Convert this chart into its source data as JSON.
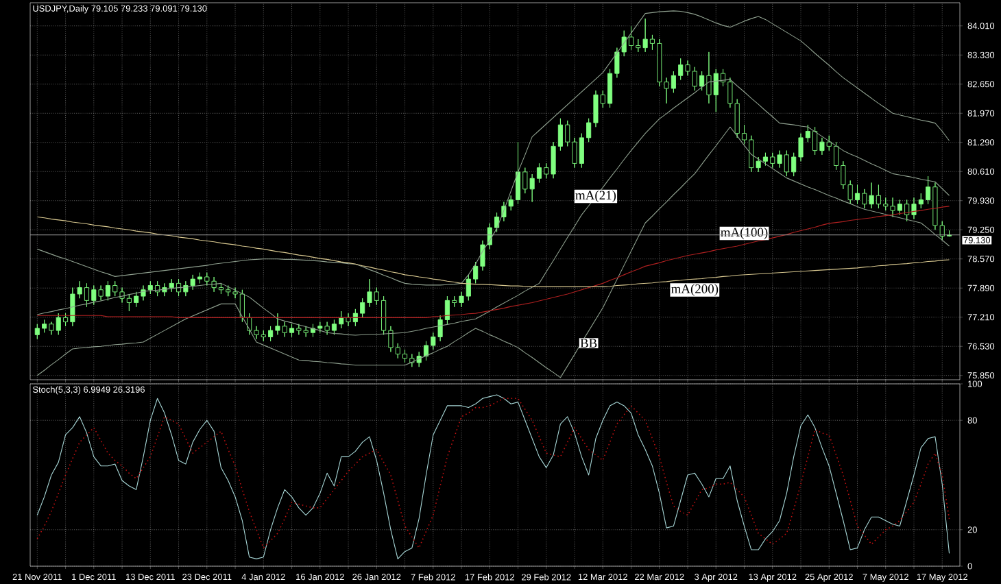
{
  "chart_data": [
    {
      "type": "candlestick",
      "title": "USDJPY,Daily 79.105 79.233 79.091 79.130",
      "color": "#80ff80",
      "categories": [
        null,
        null,
        null,
        null,
        null,
        null,
        null,
        null,
        null,
        null,
        null,
        null,
        null,
        null,
        null,
        null,
        null,
        null,
        null,
        null,
        null,
        null,
        null,
        null,
        null,
        null,
        null,
        null,
        null,
        null,
        null,
        null,
        null,
        null,
        null,
        null,
        null,
        null,
        null,
        null,
        null,
        null,
        null,
        null,
        null,
        null,
        null,
        null,
        null,
        null,
        null,
        null,
        null,
        null,
        null,
        null,
        null,
        null,
        null,
        null,
        null,
        null,
        null,
        null,
        null,
        null,
        null,
        null,
        null,
        null,
        null,
        null,
        null,
        null,
        null,
        null,
        null,
        null,
        null,
        null,
        null,
        null,
        null,
        null,
        null,
        null,
        null,
        null,
        null,
        null,
        null,
        null,
        null,
        null,
        null,
        null,
        null,
        null,
        null,
        null,
        null,
        null,
        null,
        null,
        null,
        null,
        null,
        null,
        null,
        null,
        null,
        null,
        null,
        null,
        null,
        null,
        null,
        null,
        null,
        null,
        null,
        null,
        null,
        null,
        null,
        null,
        null,
        null,
        null,
        null
      ],
      "ohlc": [
        [
          76.8,
          77.05,
          76.7,
          76.95
        ],
        [
          76.95,
          77.15,
          76.85,
          77.05
        ],
        [
          77.05,
          77.1,
          76.8,
          76.9
        ],
        [
          76.9,
          77.3,
          76.8,
          77.2
        ],
        [
          77.2,
          77.3,
          77.0,
          77.1
        ],
        [
          77.1,
          77.9,
          77.0,
          77.75
        ],
        [
          77.75,
          78.05,
          77.65,
          77.9
        ],
        [
          77.9,
          78.0,
          77.45,
          77.6
        ],
        [
          77.6,
          77.95,
          77.5,
          77.85
        ],
        [
          77.85,
          77.95,
          77.6,
          77.7
        ],
        [
          77.7,
          78.05,
          77.6,
          77.95
        ],
        [
          77.95,
          78.05,
          77.7,
          77.8
        ],
        [
          77.8,
          77.9,
          77.55,
          77.65
        ],
        [
          77.65,
          77.75,
          77.35,
          77.55
        ],
        [
          77.55,
          77.8,
          77.45,
          77.7
        ],
        [
          77.7,
          77.95,
          77.6,
          77.85
        ],
        [
          77.85,
          78.05,
          77.75,
          77.95
        ],
        [
          77.95,
          78.05,
          77.7,
          77.8
        ],
        [
          77.8,
          78.0,
          77.7,
          77.9
        ],
        [
          77.9,
          78.1,
          77.8,
          78.0
        ],
        [
          78.0,
          78.1,
          77.7,
          77.8
        ],
        [
          77.8,
          78.05,
          77.7,
          77.95
        ],
        [
          77.95,
          78.2,
          77.85,
          78.1
        ],
        [
          78.1,
          78.25,
          78.0,
          78.15
        ],
        [
          78.15,
          78.25,
          77.95,
          78.05
        ],
        [
          78.05,
          78.15,
          77.8,
          77.9
        ],
        [
          77.9,
          78.0,
          77.75,
          77.85
        ],
        [
          77.85,
          77.95,
          77.7,
          77.8
        ],
        [
          77.8,
          77.9,
          77.65,
          77.75
        ],
        [
          77.75,
          77.85,
          77.1,
          77.2
        ],
        [
          77.2,
          77.3,
          76.8,
          76.9
        ],
        [
          76.9,
          77.0,
          76.7,
          76.8
        ],
        [
          76.8,
          76.9,
          76.65,
          76.75
        ],
        [
          76.75,
          77.0,
          76.65,
          76.9
        ],
        [
          76.9,
          77.3,
          76.8,
          77.0
        ],
        [
          77.0,
          77.1,
          76.75,
          76.85
        ],
        [
          76.85,
          77.05,
          76.75,
          76.95
        ],
        [
          76.95,
          77.05,
          76.8,
          76.9
        ],
        [
          76.9,
          77.0,
          76.75,
          76.85
        ],
        [
          76.85,
          77.05,
          76.75,
          76.95
        ],
        [
          76.95,
          77.1,
          76.85,
          77.0
        ],
        [
          77.0,
          77.1,
          76.8,
          76.9
        ],
        [
          76.9,
          77.15,
          76.8,
          77.05
        ],
        [
          77.05,
          77.35,
          76.95,
          77.2
        ],
        [
          77.2,
          77.3,
          77.0,
          77.1
        ],
        [
          77.1,
          77.4,
          77.0,
          77.3
        ],
        [
          77.3,
          77.65,
          77.2,
          77.55
        ],
        [
          77.55,
          78.1,
          77.45,
          77.8
        ],
        [
          77.8,
          77.9,
          77.5,
          77.6
        ],
        [
          77.6,
          77.7,
          76.8,
          76.9
        ],
        [
          76.9,
          77.0,
          76.4,
          76.5
        ],
        [
          76.5,
          76.6,
          76.25,
          76.35
        ],
        [
          76.35,
          76.45,
          76.15,
          76.25
        ],
        [
          76.25,
          76.35,
          76.05,
          76.15
        ],
        [
          76.15,
          76.4,
          76.05,
          76.3
        ],
        [
          76.3,
          76.65,
          76.2,
          76.55
        ],
        [
          76.55,
          76.85,
          76.45,
          76.75
        ],
        [
          76.75,
          77.25,
          76.65,
          77.15
        ],
        [
          77.15,
          77.7,
          77.05,
          77.6
        ],
        [
          77.6,
          77.7,
          77.45,
          77.55
        ],
        [
          77.55,
          77.8,
          77.45,
          77.7
        ],
        [
          77.7,
          78.2,
          77.6,
          78.1
        ],
        [
          78.1,
          78.5,
          78.0,
          78.4
        ],
        [
          78.4,
          79.0,
          78.3,
          78.9
        ],
        [
          78.9,
          79.4,
          78.8,
          79.3
        ],
        [
          79.3,
          79.65,
          79.2,
          79.55
        ],
        [
          79.55,
          79.9,
          79.45,
          79.8
        ],
        [
          79.8,
          80.05,
          79.7,
          79.95
        ],
        [
          79.95,
          81.3,
          79.85,
          80.6
        ],
        [
          80.6,
          80.7,
          80.1,
          80.2
        ],
        [
          80.2,
          80.55,
          79.9,
          80.45
        ],
        [
          80.45,
          80.8,
          80.35,
          80.7
        ],
        [
          80.7,
          80.8,
          80.45,
          80.55
        ],
        [
          80.55,
          81.3,
          80.45,
          81.2
        ],
        [
          81.2,
          81.85,
          81.1,
          81.7
        ],
        [
          81.7,
          81.8,
          81.2,
          81.3
        ],
        [
          81.3,
          81.4,
          80.7,
          80.8
        ],
        [
          80.8,
          81.5,
          80.7,
          81.4
        ],
        [
          81.4,
          81.85,
          81.3,
          81.75
        ],
        [
          81.75,
          82.5,
          81.65,
          82.4
        ],
        [
          82.4,
          82.5,
          82.1,
          82.2
        ],
        [
          82.2,
          83.0,
          82.1,
          82.9
        ],
        [
          82.9,
          83.5,
          82.8,
          83.4
        ],
        [
          83.4,
          83.9,
          83.3,
          83.75
        ],
        [
          83.75,
          84.0,
          83.45,
          83.55
        ],
        [
          83.55,
          83.7,
          83.4,
          83.5
        ],
        [
          83.5,
          84.18,
          83.4,
          83.7
        ],
        [
          83.7,
          83.8,
          83.45,
          83.6
        ],
        [
          83.6,
          83.7,
          82.6,
          82.7
        ],
        [
          82.7,
          82.8,
          82.2,
          82.55
        ],
        [
          82.55,
          82.95,
          82.45,
          82.85
        ],
        [
          82.85,
          83.25,
          82.75,
          83.1
        ],
        [
          83.1,
          83.2,
          82.85,
          82.95
        ],
        [
          82.95,
          83.05,
          82.5,
          82.6
        ],
        [
          82.6,
          82.95,
          82.5,
          82.85
        ],
        [
          82.85,
          83.4,
          82.2,
          82.4
        ],
        [
          82.4,
          83.0,
          82.0,
          82.9
        ],
        [
          82.9,
          83.0,
          82.6,
          82.7
        ],
        [
          82.7,
          82.8,
          82.1,
          82.2
        ],
        [
          82.2,
          82.3,
          81.4,
          81.5
        ],
        [
          81.5,
          81.7,
          81.25,
          81.35
        ],
        [
          81.35,
          81.45,
          80.6,
          80.7
        ],
        [
          80.7,
          80.95,
          80.6,
          80.85
        ],
        [
          80.85,
          81.05,
          80.75,
          80.95
        ],
        [
          80.95,
          81.05,
          80.7,
          80.8
        ],
        [
          80.8,
          81.1,
          80.7,
          81.0
        ],
        [
          81.0,
          81.1,
          80.5,
          80.6
        ],
        [
          80.6,
          81.05,
          80.5,
          80.95
        ],
        [
          80.95,
          81.5,
          80.85,
          81.4
        ],
        [
          81.4,
          81.7,
          81.3,
          81.55
        ],
        [
          81.55,
          81.65,
          81.0,
          81.1
        ],
        [
          81.1,
          81.4,
          81.0,
          81.3
        ],
        [
          81.3,
          81.45,
          81.1,
          81.2
        ],
        [
          81.2,
          81.3,
          80.65,
          80.75
        ],
        [
          80.75,
          80.85,
          80.2,
          80.3
        ],
        [
          80.3,
          80.4,
          79.85,
          79.95
        ],
        [
          79.95,
          80.3,
          79.85,
          80.1
        ],
        [
          80.1,
          80.2,
          79.75,
          79.85
        ],
        [
          79.85,
          80.35,
          79.75,
          80.05
        ],
        [
          80.05,
          80.3,
          79.75,
          79.85
        ],
        [
          79.85,
          80.0,
          79.7,
          79.8
        ],
        [
          79.8,
          80.0,
          79.55,
          79.7
        ],
        [
          79.7,
          79.95,
          79.6,
          79.85
        ],
        [
          79.85,
          79.95,
          79.45,
          79.6
        ],
        [
          79.6,
          80.0,
          79.5,
          79.85
        ],
        [
          79.85,
          80.1,
          79.75,
          79.95
        ],
        [
          79.95,
          80.5,
          79.85,
          80.25
        ],
        [
          80.25,
          80.35,
          79.25,
          79.35
        ],
        [
          79.35,
          79.45,
          79.0,
          79.1
        ],
        [
          79.105,
          79.233,
          79.091,
          79.13
        ]
      ],
      "series": [
        {
          "type": "line",
          "color": "#8fa08f",
          "values": [
            78.8,
            78.74,
            78.68,
            78.62,
            78.57,
            78.51,
            78.45,
            78.39,
            78.33,
            78.27,
            78.22,
            78.16,
            78.18,
            78.2,
            78.22,
            78.24,
            78.26,
            78.28,
            78.3,
            78.32,
            78.34,
            78.36,
            78.38,
            78.4,
            78.42,
            78.45,
            78.47,
            78.49,
            78.51,
            78.53,
            78.55,
            78.56,
            78.57,
            78.57,
            78.57,
            78.56,
            78.56,
            78.55,
            78.54,
            78.53,
            78.52,
            78.5,
            78.49,
            78.48,
            78.46,
            78.45,
            78.39,
            78.32,
            78.26,
            78.19,
            78.13,
            78.06,
            78.0,
            77.98,
            77.97,
            77.96,
            77.96,
            77.96,
            77.97,
            77.98,
            78.0,
            78.2,
            78.45,
            78.75,
            79.0,
            79.28,
            79.7,
            80.15,
            80.6,
            81.0,
            81.42,
            81.57,
            81.72,
            81.87,
            82.02,
            82.17,
            82.32,
            82.47,
            82.62,
            82.77,
            82.92,
            83.15,
            83.38,
            83.61,
            83.84,
            84.07,
            84.3,
            84.32,
            84.34,
            84.35,
            84.36,
            84.35,
            84.32,
            84.28,
            84.22,
            84.15,
            84.08,
            84.02,
            83.98,
            84.05,
            84.12,
            84.18,
            84.23,
            84.16,
            84.06,
            83.96,
            83.86,
            83.76,
            83.66,
            83.52,
            83.37,
            83.23,
            83.09,
            82.94,
            82.8,
            82.68,
            82.56,
            82.44,
            82.32,
            82.2,
            82.09,
            81.97,
            81.93,
            81.89,
            81.85,
            81.81,
            81.78,
            81.74,
            81.55,
            81.33
          ]
        },
        {
          "type": "line",
          "name": "mA(21)",
          "color": "#8fa08f",
          "values": [
            77.27,
            77.31,
            77.34,
            77.38,
            77.41,
            77.45,
            77.49,
            77.52,
            77.56,
            77.59,
            77.63,
            77.67,
            77.7,
            77.74,
            77.77,
            77.81,
            77.83,
            77.84,
            77.86,
            77.88,
            77.9,
            77.91,
            77.93,
            77.95,
            77.97,
            77.98,
            78.0,
            77.92,
            77.84,
            77.76,
            77.68,
            77.55,
            77.42,
            77.3,
            77.17,
            77.12,
            77.08,
            77.03,
            76.99,
            76.94,
            76.9,
            76.85,
            76.83,
            76.82,
            76.8,
            76.79,
            76.8,
            76.81,
            76.81,
            76.82,
            76.83,
            76.84,
            76.85,
            76.88,
            76.91,
            76.95,
            76.98,
            77.01,
            77.04,
            77.07,
            77.11,
            77.14,
            77.17,
            77.26,
            77.35,
            77.45,
            77.54,
            77.63,
            77.72,
            77.82,
            77.91,
            78.0,
            78.27,
            78.53,
            78.8,
            79.07,
            79.33,
            79.6,
            79.81,
            80.03,
            80.24,
            80.46,
            80.67,
            80.89,
            81.1,
            81.3,
            81.5,
            81.67,
            81.84,
            81.96,
            82.09,
            82.21,
            82.33,
            82.45,
            82.58,
            82.7,
            82.72,
            82.74,
            82.76,
            82.61,
            82.47,
            82.32,
            82.18,
            82.03,
            81.89,
            81.74,
            81.72,
            81.7,
            81.67,
            81.65,
            81.54,
            81.43,
            81.32,
            81.21,
            81.1,
            81.02,
            80.95,
            80.87,
            80.79,
            80.72,
            80.64,
            80.56,
            80.53,
            80.5,
            80.47,
            80.43,
            80.4,
            80.37,
            80.21,
            80.05
          ]
        },
        {
          "type": "line",
          "name": "BB",
          "color": "#8fa08f",
          "values": [
            75.85,
            75.97,
            76.1,
            76.22,
            76.35,
            76.47,
            76.49,
            76.5,
            76.52,
            76.53,
            76.55,
            76.57,
            76.58,
            76.6,
            76.61,
            76.63,
            76.72,
            76.81,
            76.9,
            76.99,
            77.08,
            77.17,
            77.24,
            77.31,
            77.38,
            77.45,
            77.52,
            77.52,
            77.52,
            77.22,
            76.93,
            76.63,
            76.56,
            76.49,
            76.42,
            76.35,
            76.28,
            76.21,
            76.2,
            76.18,
            76.17,
            76.15,
            76.14,
            76.12,
            76.11,
            76.09,
            76.09,
            76.09,
            76.09,
            76.09,
            76.09,
            76.09,
            76.09,
            76.16,
            76.24,
            76.31,
            76.38,
            76.46,
            76.53,
            76.64,
            76.74,
            76.85,
            76.95,
            76.88,
            76.8,
            76.73,
            76.65,
            76.58,
            76.5,
            76.38,
            76.27,
            76.15,
            76.03,
            75.92,
            75.8,
            76.07,
            76.34,
            76.62,
            76.89,
            77.16,
            77.43,
            77.76,
            78.09,
            78.42,
            78.75,
            79.08,
            79.41,
            79.57,
            79.74,
            79.9,
            80.07,
            80.23,
            80.4,
            80.56,
            80.78,
            81.0,
            81.21,
            81.43,
            81.65,
            81.44,
            81.22,
            81.01,
            80.9,
            80.79,
            80.68,
            80.57,
            80.46,
            80.39,
            80.32,
            80.25,
            80.19,
            80.12,
            80.05,
            79.99,
            79.92,
            79.86,
            79.79,
            79.73,
            79.69,
            79.65,
            79.61,
            79.57,
            79.53,
            79.49,
            79.45,
            79.41,
            79.28,
            79.14,
            79.01,
            78.87
          ]
        },
        {
          "type": "line",
          "name": "mA(100)",
          "color": "#b02020",
          "values": [
            77.25,
            77.25,
            77.25,
            77.25,
            77.25,
            77.25,
            77.25,
            77.25,
            77.25,
            77.25,
            77.22,
            77.22,
            77.22,
            77.22,
            77.22,
            77.22,
            77.22,
            77.22,
            77.22,
            77.22,
            77.2,
            77.2,
            77.2,
            77.2,
            77.2,
            77.2,
            77.2,
            77.2,
            77.2,
            77.2,
            77.2,
            77.2,
            77.2,
            77.2,
            77.2,
            77.2,
            77.2,
            77.2,
            77.2,
            77.2,
            77.2,
            77.2,
            77.2,
            77.2,
            77.2,
            77.2,
            77.2,
            77.2,
            77.2,
            77.2,
            77.2,
            77.2,
            77.2,
            77.2,
            77.2,
            77.2,
            77.22,
            77.23,
            77.25,
            77.26,
            77.27,
            77.29,
            77.3,
            77.33,
            77.36,
            77.39,
            77.42,
            77.46,
            77.49,
            77.52,
            77.55,
            77.59,
            77.63,
            77.67,
            77.71,
            77.75,
            77.8,
            77.85,
            77.9,
            77.95,
            78.0,
            78.07,
            78.13,
            78.2,
            78.27,
            78.33,
            78.4,
            78.44,
            78.48,
            78.53,
            78.57,
            78.61,
            78.65,
            78.68,
            78.71,
            78.74,
            78.78,
            78.81,
            78.84,
            78.87,
            78.91,
            78.95,
            78.99,
            79.02,
            79.06,
            79.1,
            79.14,
            79.19,
            79.23,
            79.27,
            79.31,
            79.36,
            79.4,
            79.42,
            79.44,
            79.47,
            79.49,
            79.51,
            79.53,
            79.56,
            79.58,
            79.6,
            79.63,
            79.65,
            79.68,
            79.7,
            79.73,
            79.75,
            79.78,
            79.8
          ]
        },
        {
          "type": "line",
          "name": "mA(200)",
          "color": "#d8c890",
          "values": [
            79.55,
            79.53,
            79.5,
            79.48,
            79.46,
            79.43,
            79.41,
            79.39,
            79.36,
            79.34,
            79.32,
            79.29,
            79.27,
            79.25,
            79.22,
            79.2,
            79.18,
            79.15,
            79.13,
            79.11,
            79.08,
            79.06,
            79.04,
            79.01,
            78.99,
            78.97,
            78.94,
            78.92,
            78.9,
            78.87,
            78.85,
            78.82,
            78.8,
            78.77,
            78.74,
            78.72,
            78.69,
            78.66,
            78.64,
            78.61,
            78.58,
            78.56,
            78.53,
            78.5,
            78.48,
            78.45,
            78.41,
            78.38,
            78.34,
            78.31,
            78.27,
            78.24,
            78.2,
            78.18,
            78.15,
            78.13,
            78.1,
            78.08,
            78.05,
            78.03,
            78.0,
            77.99,
            77.98,
            77.98,
            77.97,
            77.96,
            77.95,
            77.94,
            77.94,
            77.93,
            77.92,
            77.92,
            77.92,
            77.92,
            77.92,
            77.92,
            77.92,
            77.92,
            77.92,
            77.92,
            77.92,
            77.93,
            77.95,
            77.96,
            77.97,
            77.99,
            78.0,
            78.01,
            78.03,
            78.04,
            78.06,
            78.07,
            78.09,
            78.1,
            78.11,
            78.13,
            78.14,
            78.16,
            78.17,
            78.19,
            78.2,
            78.21,
            78.22,
            78.23,
            78.24,
            78.25,
            78.26,
            78.27,
            78.28,
            78.29,
            78.3,
            78.31,
            78.32,
            78.33,
            78.34,
            78.35,
            78.36,
            78.38,
            78.39,
            78.41,
            78.42,
            78.44,
            78.45,
            78.46,
            78.48,
            78.49,
            78.51,
            78.52,
            78.54,
            78.55
          ]
        }
      ],
      "ref_lines": [
        {
          "axis": "y",
          "value": 79.13,
          "label": "79.130",
          "color": "#a0a0a0"
        }
      ],
      "ylim": [
        75.75,
        84.55
      ],
      "yticks": [
        {
          "value": 75.85,
          "label": "75.850"
        },
        {
          "value": 76.53,
          "label": "76.530"
        },
        {
          "value": 77.21,
          "label": "77.210"
        },
        {
          "value": 77.89,
          "label": "77.890"
        },
        {
          "value": 78.57,
          "label": "78.570"
        },
        {
          "value": 79.25,
          "label": "79.250"
        },
        {
          "value": 79.93,
          "label": "79.930"
        },
        {
          "value": 80.61,
          "label": "80.610"
        },
        {
          "value": 81.29,
          "label": "81.290"
        },
        {
          "value": 81.97,
          "label": "81.970"
        },
        {
          "value": 82.65,
          "label": "82.650"
        },
        {
          "value": 83.33,
          "label": "83.330"
        },
        {
          "value": 84.01,
          "label": "84.010"
        }
      ],
      "tick_labels": "y",
      "grid": true
    },
    {
      "type": "line",
      "title": "Stoch(5,3,3) 6.9949 26.3196",
      "categories": [
        "21 Nov 2011",
        null,
        null,
        null,
        null,
        null,
        null,
        null,
        "1 Dec 2011",
        null,
        null,
        null,
        null,
        null,
        null,
        null,
        "13 Dec 2011",
        null,
        null,
        null,
        null,
        null,
        null,
        null,
        "23 Dec 2011",
        null,
        null,
        null,
        null,
        null,
        null,
        null,
        "4 Jan 2012",
        null,
        null,
        null,
        null,
        null,
        null,
        null,
        "16 Jan 2012",
        null,
        null,
        null,
        null,
        null,
        null,
        null,
        "26 Jan 2012",
        null,
        null,
        null,
        null,
        null,
        null,
        null,
        "7 Feb 2012",
        null,
        null,
        null,
        null,
        null,
        null,
        null,
        "17 Feb 2012",
        null,
        null,
        null,
        null,
        null,
        null,
        null,
        "29 Feb 2012",
        null,
        null,
        null,
        null,
        null,
        null,
        null,
        "12 Mar 2012",
        null,
        null,
        null,
        null,
        null,
        null,
        null,
        "22 Mar 2012",
        null,
        null,
        null,
        null,
        null,
        null,
        null,
        "3 Apr 2012",
        null,
        null,
        null,
        null,
        null,
        null,
        null,
        "13 Apr 2012",
        null,
        null,
        null,
        null,
        null,
        null,
        null,
        "25 Apr 2012",
        null,
        null,
        null,
        null,
        null,
        null,
        null,
        "7 May 2012",
        null,
        null,
        null,
        null,
        null,
        null,
        null,
        "17 May 2012",
        null
      ],
      "series": [
        {
          "color": "#a8d8d8",
          "values": [
            28,
            38,
            50,
            57,
            72,
            76,
            82,
            73,
            60,
            55,
            55,
            56,
            47,
            44,
            42,
            60,
            80,
            92,
            84,
            72,
            58,
            56,
            68,
            75,
            80,
            74,
            54,
            47,
            38,
            25,
            5,
            4,
            5,
            20,
            32,
            42,
            38,
            32,
            28,
            32,
            40,
            51,
            44,
            60,
            60,
            63,
            68,
            71,
            58,
            40,
            20,
            4,
            8,
            10,
            26,
            50,
            72,
            80,
            88,
            88,
            88,
            87,
            89,
            92,
            93,
            94,
            92,
            89,
            90,
            80,
            70,
            60,
            54,
            61,
            78,
            82,
            73,
            60,
            50,
            70,
            80,
            88,
            90,
            88,
            84,
            72,
            64,
            55,
            40,
            21,
            22,
            36,
            50,
            51,
            45,
            38,
            48,
            48,
            55,
            36,
            22,
            9,
            9,
            15,
            19,
            25,
            40,
            60,
            77,
            83,
            76,
            65,
            55,
            40,
            25,
            9,
            10,
            20,
            27,
            27,
            25,
            23,
            22,
            36,
            50,
            65,
            70,
            71,
            45,
            7
          ]
        },
        {
          "color": "#c01010",
          "line_style": "dotted",
          "values": [
            15,
            22,
            30,
            40,
            50,
            59,
            68,
            72,
            76,
            69,
            62,
            58,
            55,
            51,
            48,
            54,
            60,
            71,
            82,
            80,
            78,
            70,
            62,
            65,
            68,
            71,
            74,
            64,
            55,
            42,
            30,
            20,
            10,
            14,
            18,
            26,
            35,
            34,
            33,
            32,
            32,
            37,
            42,
            47,
            52,
            56,
            60,
            62,
            64,
            57,
            50,
            36,
            22,
            16,
            10,
            19,
            28,
            44,
            60,
            71,
            82,
            84,
            87,
            87,
            88,
            90,
            92,
            92,
            92,
            86,
            80,
            71,
            62,
            61,
            60,
            68,
            76,
            70,
            64,
            61,
            58,
            68,
            78,
            83,
            88,
            84,
            80,
            70,
            60,
            46,
            33,
            30,
            28,
            35,
            42,
            43,
            45,
            45,
            46,
            42,
            38,
            28,
            18,
            15,
            12,
            15,
            18,
            31,
            45,
            60,
            75,
            73,
            72,
            61,
            50,
            36,
            22,
            17,
            12,
            16,
            20,
            22,
            25,
            30,
            35,
            45,
            56,
            62,
            50,
            26
          ]
        }
      ],
      "ylim": [
        0,
        100
      ],
      "yticks": [
        0,
        20,
        80,
        100
      ],
      "grid": true
    }
  ]
}
